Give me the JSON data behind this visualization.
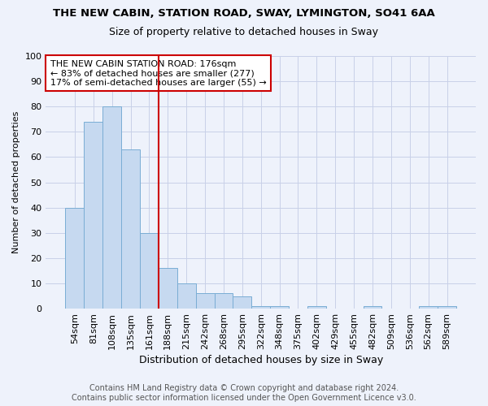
{
  "title": "THE NEW CABIN, STATION ROAD, SWAY, LYMINGTON, SO41 6AA",
  "subtitle": "Size of property relative to detached houses in Sway",
  "xlabel": "Distribution of detached houses by size in Sway",
  "ylabel": "Number of detached properties",
  "bar_labels": [
    "54sqm",
    "81sqm",
    "108sqm",
    "135sqm",
    "161sqm",
    "188sqm",
    "215sqm",
    "242sqm",
    "268sqm",
    "295sqm",
    "322sqm",
    "348sqm",
    "375sqm",
    "402sqm",
    "429sqm",
    "455sqm",
    "482sqm",
    "509sqm",
    "536sqm",
    "562sqm",
    "589sqm"
  ],
  "bar_values": [
    40,
    74,
    80,
    63,
    30,
    16,
    10,
    6,
    6,
    5,
    1,
    1,
    0,
    1,
    0,
    0,
    1,
    0,
    0,
    1,
    1
  ],
  "bar_color": "#c6d9f0",
  "bar_edge_color": "#7aadd4",
  "ref_line_x": 4.5,
  "ref_line_color": "#cc0000",
  "annotation_text": "THE NEW CABIN STATION ROAD: 176sqm\n← 83% of detached houses are smaller (277)\n17% of semi-detached houses are larger (55) →",
  "annotation_box_color": "white",
  "annotation_box_edge_color": "#cc0000",
  "ylim": [
    0,
    100
  ],
  "yticks": [
    0,
    10,
    20,
    30,
    40,
    50,
    60,
    70,
    80,
    90,
    100
  ],
  "footer": "Contains HM Land Registry data © Crown copyright and database right 2024.\nContains public sector information licensed under the Open Government Licence v3.0.",
  "background_color": "#eef2fb",
  "grid_color": "#c8d0e8",
  "title_fontsize": 9.5,
  "subtitle_fontsize": 9,
  "xlabel_fontsize": 9,
  "ylabel_fontsize": 8,
  "tick_fontsize": 8,
  "annotation_fontsize": 8,
  "footer_fontsize": 7
}
